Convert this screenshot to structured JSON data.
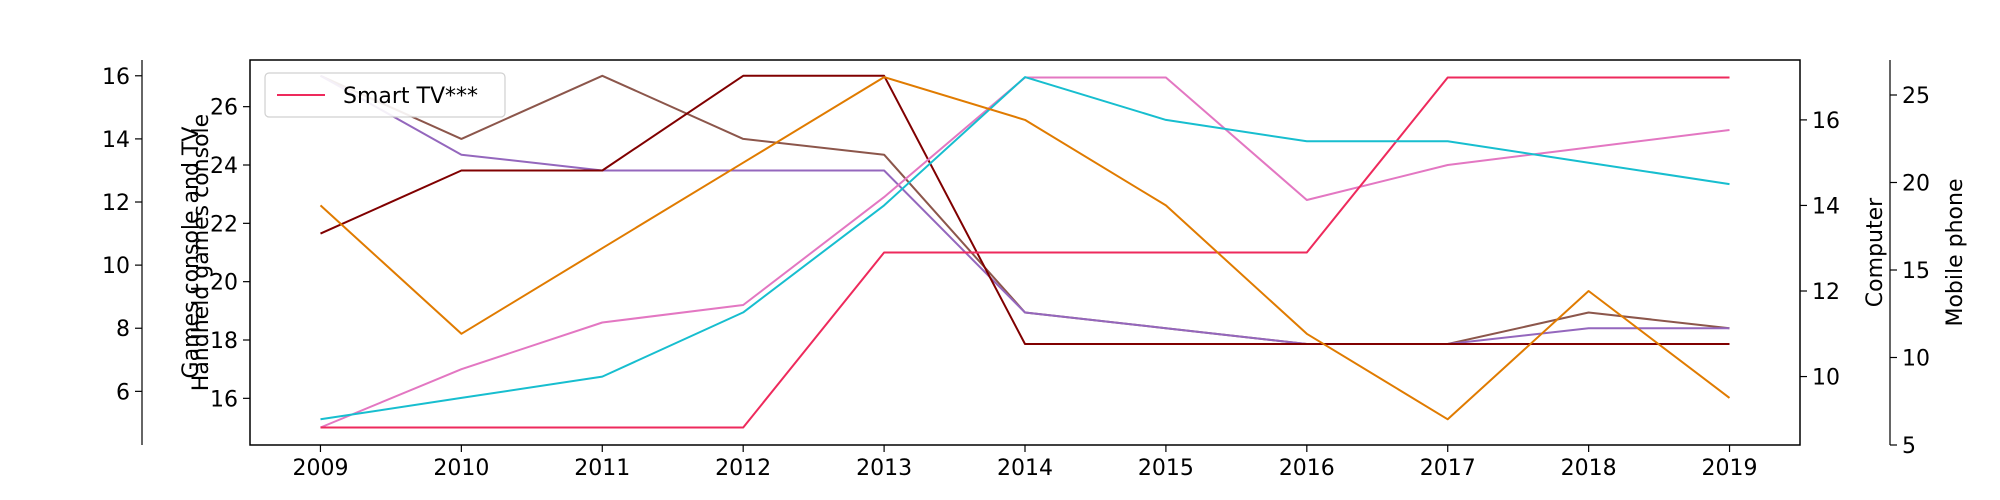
{
  "chart_data": {
    "type": "line",
    "x": [
      2009,
      2010,
      2011,
      2012,
      2013,
      2014,
      2015,
      2016,
      2017,
      2018,
      2019
    ],
    "xlim": [
      2008.5,
      2019.5
    ],
    "axes": {
      "left_outer": {
        "label": "Games console and TV",
        "ylim": [
          4.3,
          16.5
        ],
        "ticks": [
          6,
          8,
          10,
          12,
          14,
          16
        ]
      },
      "left_inner": {
        "label": "Handheld games console",
        "ylim": [
          14.4,
          27.6
        ],
        "ticks": [
          16,
          18,
          20,
          22,
          24,
          26
        ]
      },
      "right_inner": {
        "label": "Computer",
        "ylim": [
          8.4,
          17.4
        ],
        "ticks": [
          10,
          12,
          14,
          16
        ]
      },
      "right_outer": {
        "label": "Mobile phone",
        "ylim": [
          5,
          27
        ],
        "ticks": [
          5,
          10,
          15,
          20,
          25
        ]
      }
    },
    "series": [
      {
        "axis": "left_outer",
        "color": "#8c564b",
        "values": [
          16,
          14,
          16,
          14,
          13.5,
          8.5,
          8,
          7.5,
          7.5,
          8.5,
          8
        ]
      },
      {
        "axis": "left_outer",
        "color": "#9467bd",
        "values": [
          16,
          13.5,
          13,
          13,
          13,
          8.5,
          8,
          7.5,
          7.5,
          8,
          8
        ]
      },
      {
        "axis": "left_outer",
        "color": "#800000",
        "values": [
          11,
          13,
          13,
          16,
          16,
          7.5,
          7.5,
          7.5,
          7.5,
          7.5,
          7.5
        ]
      },
      {
        "axis": "left_inner",
        "color": "#e377c2",
        "values": [
          15,
          17,
          18.6,
          19.2,
          22.9,
          27,
          27,
          22.8,
          24,
          24.6,
          25.2
        ]
      },
      {
        "axis": "left_inner",
        "color": "#ee2a5c",
        "name": "Smart TV***",
        "values": [
          15,
          15,
          15,
          15,
          21,
          21,
          21,
          21,
          27,
          27,
          27
        ]
      },
      {
        "axis": "right_inner",
        "color": "#17becf",
        "values": [
          9,
          9.5,
          10,
          11.5,
          14,
          17,
          16,
          15.5,
          15.5,
          15,
          14.5
        ]
      },
      {
        "axis": "right_inner",
        "color": "#e07b00",
        "values": [
          14,
          11,
          13,
          15,
          17,
          16,
          14,
          11,
          9,
          12,
          9.5
        ]
      }
    ],
    "legend": {
      "placement": "upper-left"
    },
    "grid": false
  }
}
